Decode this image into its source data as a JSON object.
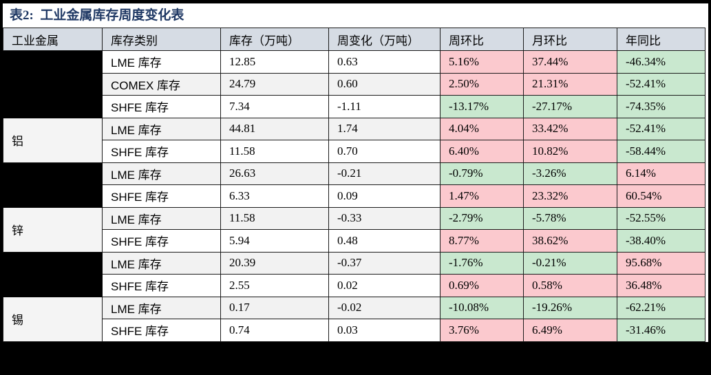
{
  "title": "表2:  工业金属库存周度变化表",
  "colors": {
    "title_color": "#1F3864",
    "header_bg": "#D6DCE4",
    "positive_bg": "#FBC9CE",
    "negative_bg": "#C9E8CF",
    "stripe_bg": "#F2F2F2",
    "redacted_cell_bg": "#000000"
  },
  "table": {
    "headers": [
      "工业金属",
      "库存类别",
      "库存（万吨）",
      "周变化（万吨）",
      "周环比",
      "月环比",
      "年同比"
    ],
    "groups": [
      {
        "metal": "",
        "redacted": true,
        "rows": [
          {
            "category": "LME 库存",
            "inventory": "12.85",
            "change": "0.63",
            "wow": {
              "value": "5.16%",
              "trend": "pos"
            },
            "mom": {
              "value": "37.44%",
              "trend": "pos"
            },
            "yoy": {
              "value": "-46.34%",
              "trend": "neg"
            }
          },
          {
            "category": "COMEX 库存",
            "inventory": "24.79",
            "change": "0.60",
            "wow": {
              "value": "2.50%",
              "trend": "pos"
            },
            "mom": {
              "value": "21.31%",
              "trend": "pos"
            },
            "yoy": {
              "value": "-52.41%",
              "trend": "neg"
            }
          },
          {
            "category": "SHFE 库存",
            "inventory": "7.34",
            "change": "-1.11",
            "wow": {
              "value": "-13.17%",
              "trend": "neg"
            },
            "mom": {
              "value": "-27.17%",
              "trend": "neg"
            },
            "yoy": {
              "value": "-74.35%",
              "trend": "neg"
            }
          }
        ]
      },
      {
        "metal": "铝",
        "redacted": false,
        "rows": [
          {
            "category": "LME 库存",
            "inventory": "44.81",
            "change": "1.74",
            "wow": {
              "value": "4.04%",
              "trend": "pos"
            },
            "mom": {
              "value": "33.42%",
              "trend": "pos"
            },
            "yoy": {
              "value": "-52.41%",
              "trend": "neg"
            }
          },
          {
            "category": "SHFE 库存",
            "inventory": "11.58",
            "change": "0.70",
            "wow": {
              "value": "6.40%",
              "trend": "pos"
            },
            "mom": {
              "value": "10.82%",
              "trend": "pos"
            },
            "yoy": {
              "value": "-58.44%",
              "trend": "neg"
            }
          }
        ]
      },
      {
        "metal": "",
        "redacted": true,
        "rows": [
          {
            "category": "LME 库存",
            "inventory": "26.63",
            "change": "-0.21",
            "wow": {
              "value": "-0.79%",
              "trend": "neg"
            },
            "mom": {
              "value": "-3.26%",
              "trend": "neg"
            },
            "yoy": {
              "value": "6.14%",
              "trend": "pos"
            }
          },
          {
            "category": "SHFE 库存",
            "inventory": "6.33",
            "change": "0.09",
            "wow": {
              "value": "1.47%",
              "trend": "pos"
            },
            "mom": {
              "value": "23.32%",
              "trend": "pos"
            },
            "yoy": {
              "value": "60.54%",
              "trend": "pos"
            }
          }
        ]
      },
      {
        "metal": "锌",
        "redacted": false,
        "rows": [
          {
            "category": "LME 库存",
            "inventory": "11.58",
            "change": "-0.33",
            "wow": {
              "value": "-2.79%",
              "trend": "neg"
            },
            "mom": {
              "value": "-5.78%",
              "trend": "neg"
            },
            "yoy": {
              "value": "-52.55%",
              "trend": "neg"
            }
          },
          {
            "category": "SHFE 库存",
            "inventory": "5.94",
            "change": "0.48",
            "wow": {
              "value": "8.77%",
              "trend": "pos"
            },
            "mom": {
              "value": "38.62%",
              "trend": "pos"
            },
            "yoy": {
              "value": "-38.40%",
              "trend": "neg"
            }
          }
        ]
      },
      {
        "metal": "",
        "redacted": true,
        "rows": [
          {
            "category": "LME 库存",
            "inventory": "20.39",
            "change": "-0.37",
            "wow": {
              "value": "-1.76%",
              "trend": "neg"
            },
            "mom": {
              "value": "-0.21%",
              "trend": "neg"
            },
            "yoy": {
              "value": "95.68%",
              "trend": "pos"
            }
          },
          {
            "category": "SHFE 库存",
            "inventory": "2.55",
            "change": "0.02",
            "wow": {
              "value": "0.69%",
              "trend": "pos"
            },
            "mom": {
              "value": "0.58%",
              "trend": "pos"
            },
            "yoy": {
              "value": "36.48%",
              "trend": "pos"
            }
          }
        ]
      },
      {
        "metal": "锡",
        "redacted": false,
        "rows": [
          {
            "category": "LME 库存",
            "inventory": "0.17",
            "change": "-0.02",
            "wow": {
              "value": "-10.08%",
              "trend": "neg"
            },
            "mom": {
              "value": "-19.26%",
              "trend": "neg"
            },
            "yoy": {
              "value": "-62.21%",
              "trend": "neg"
            }
          },
          {
            "category": "SHFE 库存",
            "inventory": "0.74",
            "change": "0.03",
            "wow": {
              "value": "3.76%",
              "trend": "pos"
            },
            "mom": {
              "value": "6.49%",
              "trend": "pos"
            },
            "yoy": {
              "value": "-31.46%",
              "trend": "neg"
            }
          }
        ]
      }
    ]
  }
}
